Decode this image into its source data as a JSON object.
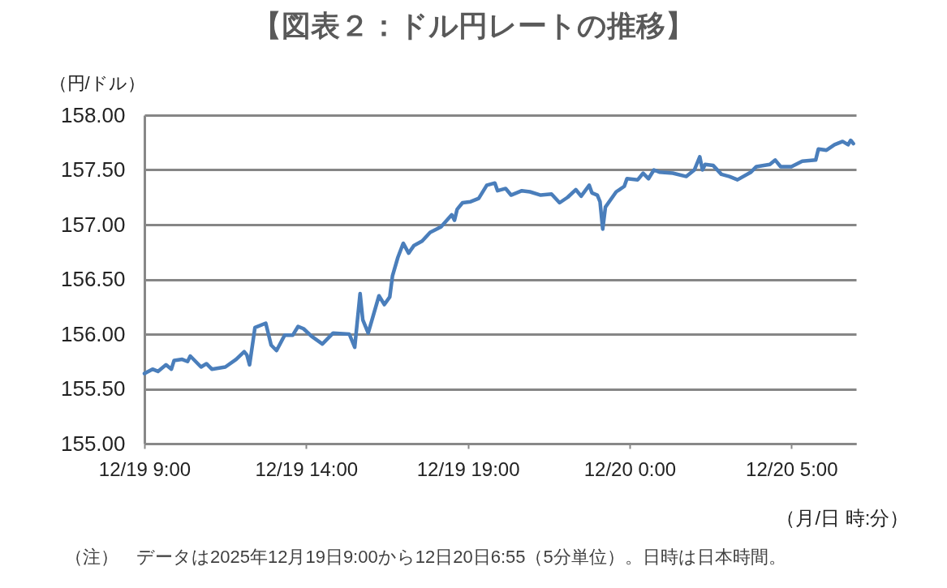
{
  "chart_data": {
    "type": "line",
    "title": "【図表２：ドル円レートの推移】",
    "ylabel": "（円/ドル）",
    "xlabel": "（月/日 時:分）",
    "annotations": [
      "（注）　データは2025年12月19日9:00から12日20日6:55（5分単位）。日時は日本時間。"
    ],
    "x": [
      "2025-12-19T09:00",
      "2025-12-19T09:15",
      "2025-12-19T09:25",
      "2025-12-19T09:40",
      "2025-12-19T09:50",
      "2025-12-19T09:55",
      "2025-12-19T10:10",
      "2025-12-19T10:20",
      "2025-12-19T10:25",
      "2025-12-19T10:45",
      "2025-12-19T10:55",
      "2025-12-19T11:05",
      "2025-12-19T11:30",
      "2025-12-19T11:50",
      "2025-12-19T12:05",
      "2025-12-19T12:10",
      "2025-12-19T12:15",
      "2025-12-19T12:25",
      "2025-12-19T12:45",
      "2025-12-19T12:55",
      "2025-12-19T13:05",
      "2025-12-19T13:20",
      "2025-12-19T13:35",
      "2025-12-19T13:45",
      "2025-12-19T13:55",
      "2025-12-19T14:10",
      "2025-12-19T14:30",
      "2025-12-19T14:50",
      "2025-12-19T15:20",
      "2025-12-19T15:30",
      "2025-12-19T15:40",
      "2025-12-19T15:45",
      "2025-12-19T15:55",
      "2025-12-19T16:15",
      "2025-12-19T16:25",
      "2025-12-19T16:35",
      "2025-12-19T16:40",
      "2025-12-19T16:50",
      "2025-12-19T17:00",
      "2025-12-19T17:10",
      "2025-12-19T17:20",
      "2025-12-19T17:35",
      "2025-12-19T17:50",
      "2025-12-19T18:10",
      "2025-12-19T18:30",
      "2025-12-19T18:35",
      "2025-12-19T18:40",
      "2025-12-19T18:50",
      "2025-12-19T19:05",
      "2025-12-19T19:20",
      "2025-12-19T19:35",
      "2025-12-19T19:50",
      "2025-12-19T19:55",
      "2025-12-19T20:10",
      "2025-12-19T20:20",
      "2025-12-19T20:40",
      "2025-12-19T20:55",
      "2025-12-19T21:15",
      "2025-12-19T21:35",
      "2025-12-19T21:50",
      "2025-12-19T22:05",
      "2025-12-19T22:20",
      "2025-12-19T22:30",
      "2025-12-19T22:45",
      "2025-12-19T22:50",
      "2025-12-19T23:00",
      "2025-12-19T23:05",
      "2025-12-19T23:10",
      "2025-12-19T23:15",
      "2025-12-19T23:35",
      "2025-12-19T23:50",
      "2025-12-19T23:55",
      "2025-12-20T00:15",
      "2025-12-20T00:25",
      "2025-12-20T00:35",
      "2025-12-20T00:45",
      "2025-12-20T00:55",
      "2025-12-20T01:20",
      "2025-12-20T01:45",
      "2025-12-20T02:00",
      "2025-12-20T02:10",
      "2025-12-20T02:15",
      "2025-12-20T02:20",
      "2025-12-20T02:35",
      "2025-12-20T02:50",
      "2025-12-20T03:05",
      "2025-12-20T03:20",
      "2025-12-20T03:45",
      "2025-12-20T03:55",
      "2025-12-20T04:20",
      "2025-12-20T04:30",
      "2025-12-20T04:40",
      "2025-12-20T05:00",
      "2025-12-20T05:20",
      "2025-12-20T05:45",
      "2025-12-20T05:50",
      "2025-12-20T06:05",
      "2025-12-20T06:20",
      "2025-12-20T06:35",
      "2025-12-20T06:45",
      "2025-12-20T06:50",
      "2025-12-20T06:55"
    ],
    "series": [
      {
        "color": "#4a7ebb",
        "values": [
          155.64,
          155.68,
          155.66,
          155.72,
          155.68,
          155.76,
          155.77,
          155.75,
          155.8,
          155.7,
          155.73,
          155.68,
          155.7,
          155.77,
          155.84,
          155.81,
          155.72,
          156.06,
          156.1,
          155.9,
          155.85,
          155.99,
          155.99,
          156.07,
          156.05,
          155.98,
          155.91,
          156.01,
          156.0,
          155.88,
          156.37,
          156.13,
          156.01,
          156.35,
          156.27,
          156.34,
          156.53,
          156.7,
          156.83,
          156.74,
          156.81,
          156.85,
          156.93,
          156.98,
          157.09,
          157.04,
          157.14,
          157.2,
          157.21,
          157.24,
          157.36,
          157.38,
          157.31,
          157.33,
          157.27,
          157.31,
          157.3,
          157.27,
          157.28,
          157.2,
          157.25,
          157.32,
          157.26,
          157.36,
          157.29,
          157.27,
          157.21,
          156.96,
          157.16,
          157.3,
          157.35,
          157.42,
          157.41,
          157.47,
          157.42,
          157.5,
          157.48,
          157.47,
          157.44,
          157.5,
          157.62,
          157.5,
          157.55,
          157.54,
          157.46,
          157.44,
          157.41,
          157.48,
          157.53,
          157.55,
          157.59,
          157.53,
          157.53,
          157.58,
          157.59,
          157.69,
          157.68,
          157.73,
          157.76,
          157.73,
          157.77,
          157.74
        ]
      }
    ],
    "xlim": [
      "2025-12-19T09:00",
      "2025-12-20T07:00"
    ],
    "xticks": [
      {
        "value": "2025-12-19T09:00",
        "label": "12/19 9:00"
      },
      {
        "value": "2025-12-19T14:00",
        "label": "12/19 14:00"
      },
      {
        "value": "2025-12-19T19:00",
        "label": "12/19 19:00"
      },
      {
        "value": "2025-12-20T00:00",
        "label": "12/20 0:00"
      },
      {
        "value": "2025-12-20T05:00",
        "label": "12/20 5:00"
      }
    ],
    "ylim": [
      155,
      158
    ],
    "yticks": [
      {
        "value": 155,
        "label": "155.00"
      },
      {
        "value": 155.5,
        "label": "155.50"
      },
      {
        "value": 156,
        "label": "156.00"
      },
      {
        "value": 156.5,
        "label": "156.50"
      },
      {
        "value": 157,
        "label": "157.00"
      },
      {
        "value": 157.5,
        "label": "157.50"
      },
      {
        "value": 158,
        "label": "158.00"
      }
    ],
    "grid": "y"
  }
}
